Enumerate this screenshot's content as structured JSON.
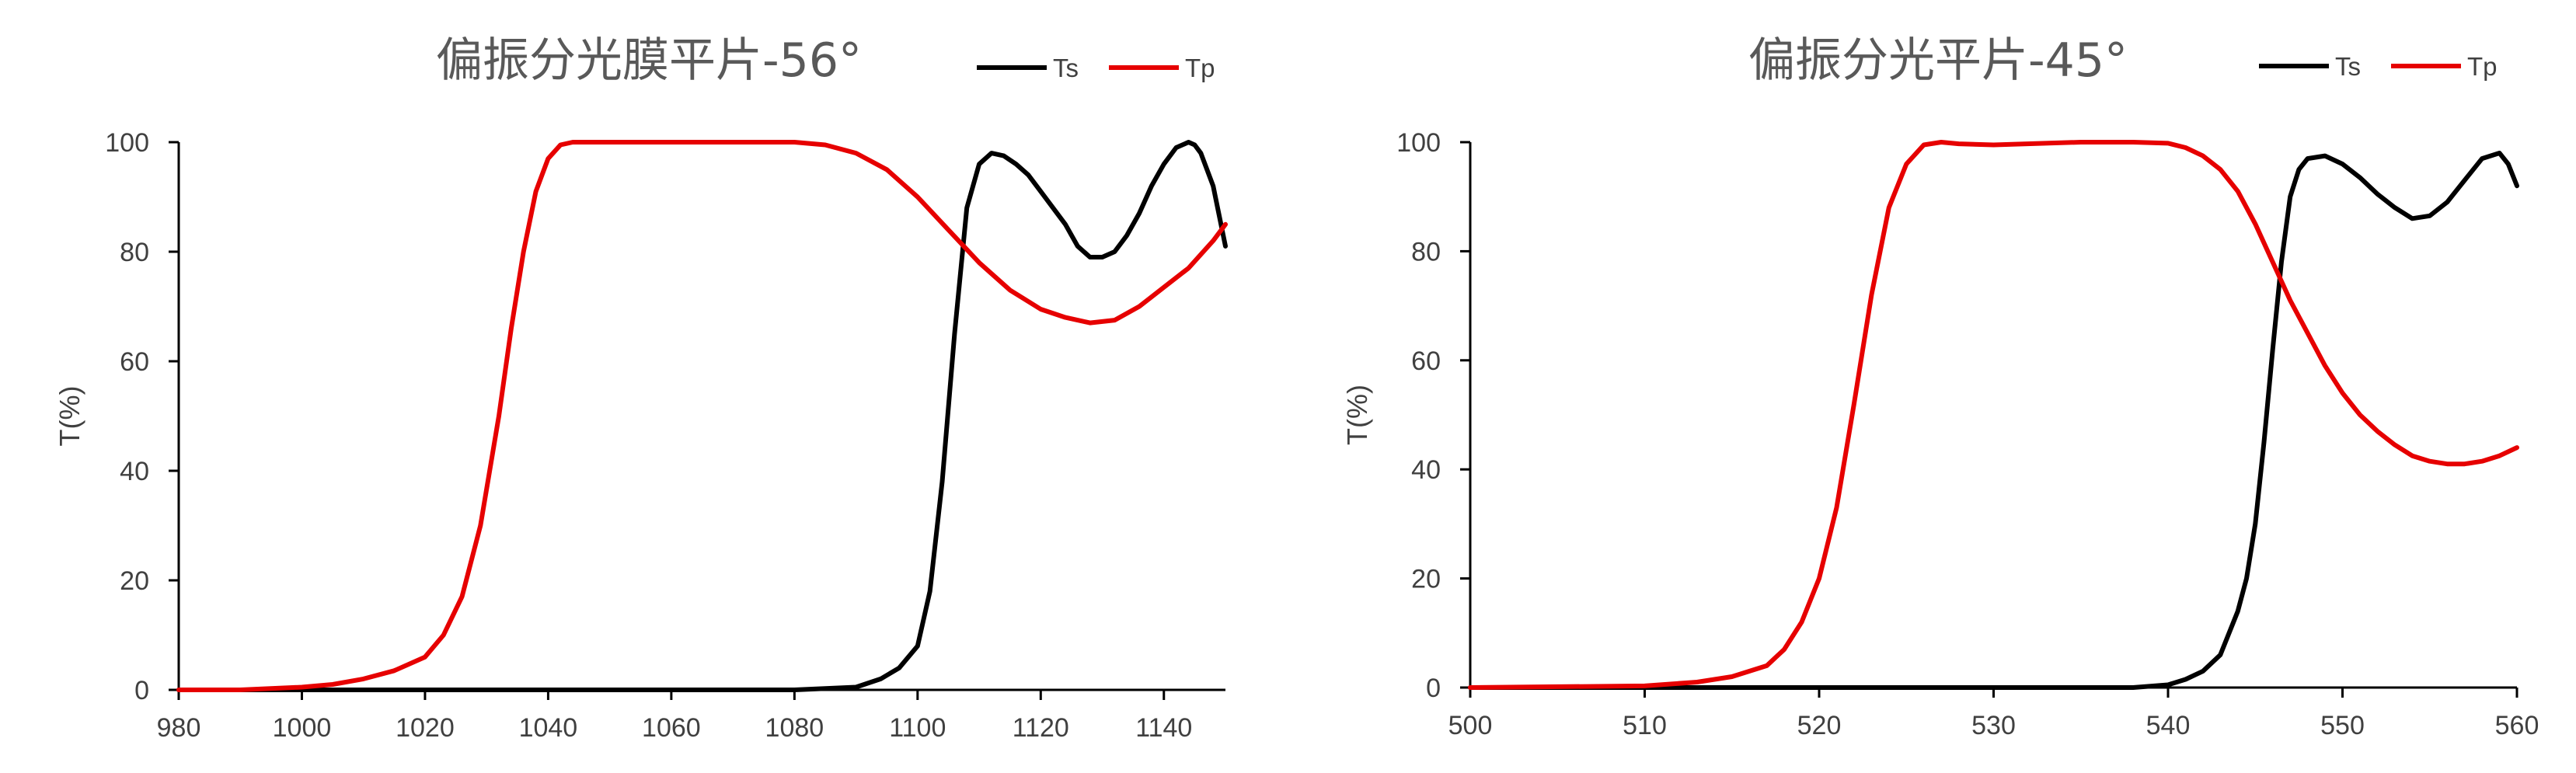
{
  "chart_data": [
    {
      "type": "line",
      "title": "偏振分光膜平片-56°",
      "xlabel": "",
      "ylabel": "T(%)",
      "xlim": [
        980,
        1150
      ],
      "ylim": [
        0,
        100
      ],
      "xticks": [
        980,
        1000,
        1020,
        1040,
        1060,
        1080,
        1100,
        1120,
        1140
      ],
      "yticks": [
        0,
        20,
        40,
        60,
        80,
        100
      ],
      "grid": false,
      "legend": "top-right",
      "series": [
        {
          "name": "Ts",
          "color": "#000000",
          "x": [
            980,
            1000,
            1040,
            1080,
            1090,
            1094,
            1097,
            1100,
            1102,
            1104,
            1106,
            1108,
            1110,
            1112,
            1114,
            1116,
            1118,
            1120,
            1122,
            1124,
            1126,
            1128,
            1130,
            1132,
            1134,
            1136,
            1138,
            1140,
            1142,
            1144,
            1145,
            1146,
            1148,
            1150
          ],
          "y": [
            0,
            0,
            0,
            0,
            0.5,
            2,
            4,
            8,
            18,
            38,
            65,
            88,
            96,
            98,
            97.5,
            96,
            94,
            91,
            88,
            85,
            81,
            79,
            79,
            80,
            83,
            87,
            92,
            96,
            99,
            100,
            99.5,
            98,
            92,
            81
          ]
        },
        {
          "name": "Tp",
          "color": "#e60000",
          "x": [
            980,
            990,
            1000,
            1005,
            1010,
            1015,
            1020,
            1023,
            1026,
            1029,
            1032,
            1034,
            1036,
            1038,
            1040,
            1042,
            1044,
            1046,
            1048,
            1060,
            1080,
            1085,
            1090,
            1095,
            1100,
            1105,
            1110,
            1115,
            1120,
            1124,
            1128,
            1132,
            1136,
            1140,
            1144,
            1148,
            1150
          ],
          "y": [
            0,
            0,
            0.5,
            1,
            2,
            3.5,
            6,
            10,
            17,
            30,
            50,
            66,
            80,
            91,
            97,
            99.5,
            100,
            100,
            100,
            100,
            100,
            99.5,
            98,
            95,
            90,
            84,
            78,
            73,
            69.5,
            68,
            67,
            67.5,
            70,
            73.5,
            77,
            82,
            85
          ]
        }
      ]
    },
    {
      "type": "line",
      "title": "偏振分光平片-45°",
      "xlabel": "",
      "ylabel": "T(%)",
      "xlim": [
        500,
        560
      ],
      "ylim": [
        0,
        100
      ],
      "xticks": [
        500,
        510,
        520,
        530,
        540,
        550,
        560
      ],
      "yticks": [
        0,
        20,
        40,
        60,
        80,
        100
      ],
      "grid": false,
      "legend": "top-right",
      "series": [
        {
          "name": "Ts",
          "color": "#000000",
          "x": [
            500,
            530,
            538,
            540,
            541,
            542,
            543,
            544,
            544.5,
            545,
            545.5,
            546,
            546.5,
            547,
            547.5,
            548,
            549,
            550,
            551,
            552,
            553,
            554,
            555,
            556,
            557,
            558,
            559,
            559.5,
            560
          ],
          "y": [
            0,
            0,
            0,
            0.5,
            1.5,
            3,
            6,
            14,
            20,
            30,
            45,
            62,
            78,
            90,
            95,
            97,
            97.5,
            96,
            93.5,
            90.5,
            88,
            86,
            86.5,
            89,
            93,
            97,
            98,
            96,
            92
          ]
        },
        {
          "name": "Tp",
          "color": "#e60000",
          "x": [
            500,
            510,
            513,
            515,
            517,
            518,
            519,
            520,
            521,
            522,
            523,
            524,
            525,
            526,
            527,
            528,
            530,
            535,
            538,
            540,
            541,
            542,
            543,
            544,
            545,
            546,
            547,
            548,
            549,
            550,
            551,
            552,
            553,
            554,
            555,
            556,
            557,
            558,
            559,
            560
          ],
          "y": [
            0,
            0.3,
            1,
            2,
            4,
            7,
            12,
            20,
            33,
            52,
            72,
            88,
            96,
            99.5,
            100,
            99.7,
            99.5,
            100,
            100,
            99.8,
            99,
            97.5,
            95,
            91,
            85,
            78,
            71,
            65,
            59,
            54,
            50,
            47,
            44.5,
            42.5,
            41.5,
            41,
            41,
            41.5,
            42.5,
            44
          ]
        }
      ]
    }
  ]
}
